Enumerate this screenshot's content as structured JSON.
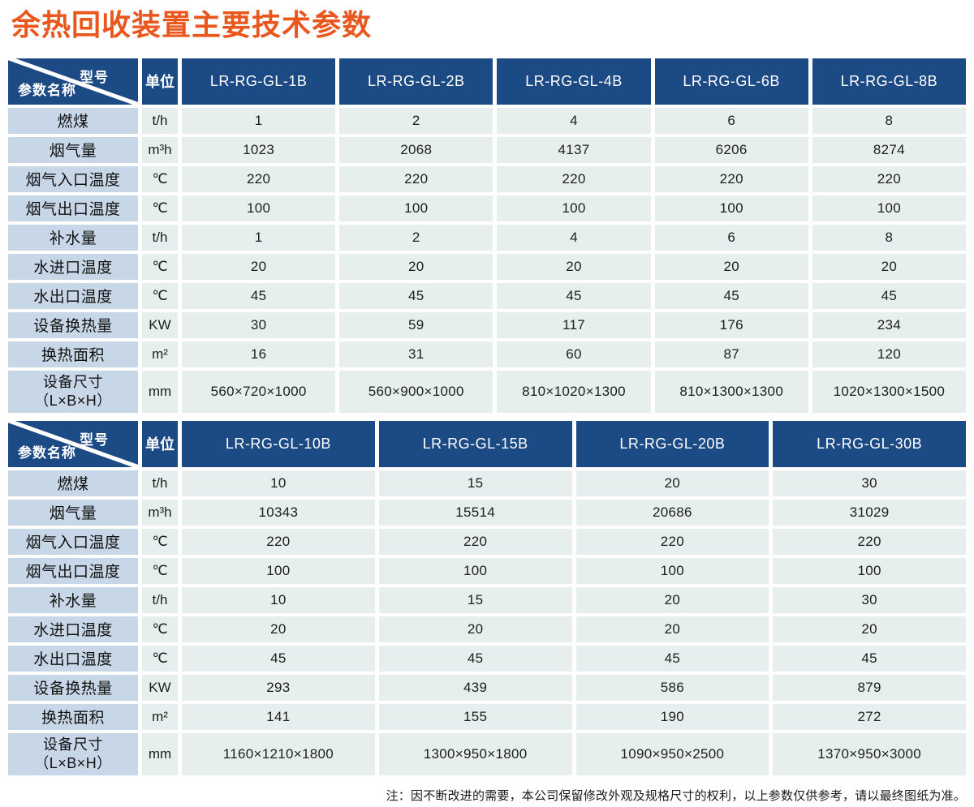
{
  "page": {
    "title": "余热回收装置主要技术参数",
    "note": "注：因不断改进的需要，本公司保留修改外观及规格尺寸的权利，以上参数仅供参考，请以最终图纸为准。"
  },
  "corner": {
    "model_label": "型号",
    "param_label": "参数名称"
  },
  "labels": {
    "unit": "单位"
  },
  "colors": {
    "title": "#e9571d",
    "header_bg": "#1c4a85",
    "label_bg": "#c8d7e7",
    "cell_bg": "#e6efee"
  },
  "tables": [
    {
      "models": [
        "LR-RG-GL-1B",
        "LR-RG-GL-2B",
        "LR-RG-GL-4B",
        "LR-RG-GL-6B",
        "LR-RG-GL-8B"
      ],
      "rows": [
        {
          "label": "燃煤",
          "unit": "t/h",
          "values": [
            "1",
            "2",
            "4",
            "6",
            "8"
          ]
        },
        {
          "label": "烟气量",
          "unit": "m³h",
          "values": [
            "1023",
            "2068",
            "4137",
            "6206",
            "8274"
          ]
        },
        {
          "label": "烟气入口温度",
          "unit": "℃",
          "values": [
            "220",
            "220",
            "220",
            "220",
            "220"
          ]
        },
        {
          "label": "烟气出口温度",
          "unit": "℃",
          "values": [
            "100",
            "100",
            "100",
            "100",
            "100"
          ]
        },
        {
          "label": "补水量",
          "unit": "t/h",
          "values": [
            "1",
            "2",
            "4",
            "6",
            "8"
          ]
        },
        {
          "label": "水进口温度",
          "unit": "℃",
          "values": [
            "20",
            "20",
            "20",
            "20",
            "20"
          ]
        },
        {
          "label": "水出口温度",
          "unit": "℃",
          "values": [
            "45",
            "45",
            "45",
            "45",
            "45"
          ]
        },
        {
          "label": "设备换热量",
          "unit": "KW",
          "values": [
            "30",
            "59",
            "117",
            "176",
            "234"
          ]
        },
        {
          "label": "换热面积",
          "unit": "m²",
          "values": [
            "16",
            "31",
            "60",
            "87",
            "120"
          ]
        },
        {
          "label": "设备尺寸",
          "label2": "（L×B×H）",
          "unit": "mm",
          "values": [
            "560×720×1000",
            "560×900×1000",
            "810×1020×1300",
            "810×1300×1300",
            "1020×1300×1500"
          ]
        }
      ]
    },
    {
      "models": [
        "LR-RG-GL-10B",
        "LR-RG-GL-15B",
        "LR-RG-GL-20B",
        "LR-RG-GL-30B"
      ],
      "rows": [
        {
          "label": "燃煤",
          "unit": "t/h",
          "values": [
            "10",
            "15",
            "20",
            "30"
          ]
        },
        {
          "label": "烟气量",
          "unit": "m³h",
          "values": [
            "10343",
            "15514",
            "20686",
            "31029"
          ]
        },
        {
          "label": "烟气入口温度",
          "unit": "℃",
          "values": [
            "220",
            "220",
            "220",
            "220"
          ]
        },
        {
          "label": "烟气出口温度",
          "unit": "℃",
          "values": [
            "100",
            "100",
            "100",
            "100"
          ]
        },
        {
          "label": "补水量",
          "unit": "t/h",
          "values": [
            "10",
            "15",
            "20",
            "30"
          ]
        },
        {
          "label": "水进口温度",
          "unit": "℃",
          "values": [
            "20",
            "20",
            "20",
            "20"
          ]
        },
        {
          "label": "水出口温度",
          "unit": "℃",
          "values": [
            "45",
            "45",
            "45",
            "45"
          ]
        },
        {
          "label": "设备换热量",
          "unit": "KW",
          "values": [
            "293",
            "439",
            "586",
            "879"
          ]
        },
        {
          "label": "换热面积",
          "unit": "m²",
          "values": [
            "141",
            "155",
            "190",
            "272"
          ]
        },
        {
          "label": "设备尺寸",
          "label2": "（L×B×H）",
          "unit": "mm",
          "values": [
            "1160×1210×1800",
            "1300×950×1800",
            "1090×950×2500",
            "1370×950×3000"
          ]
        }
      ]
    }
  ]
}
